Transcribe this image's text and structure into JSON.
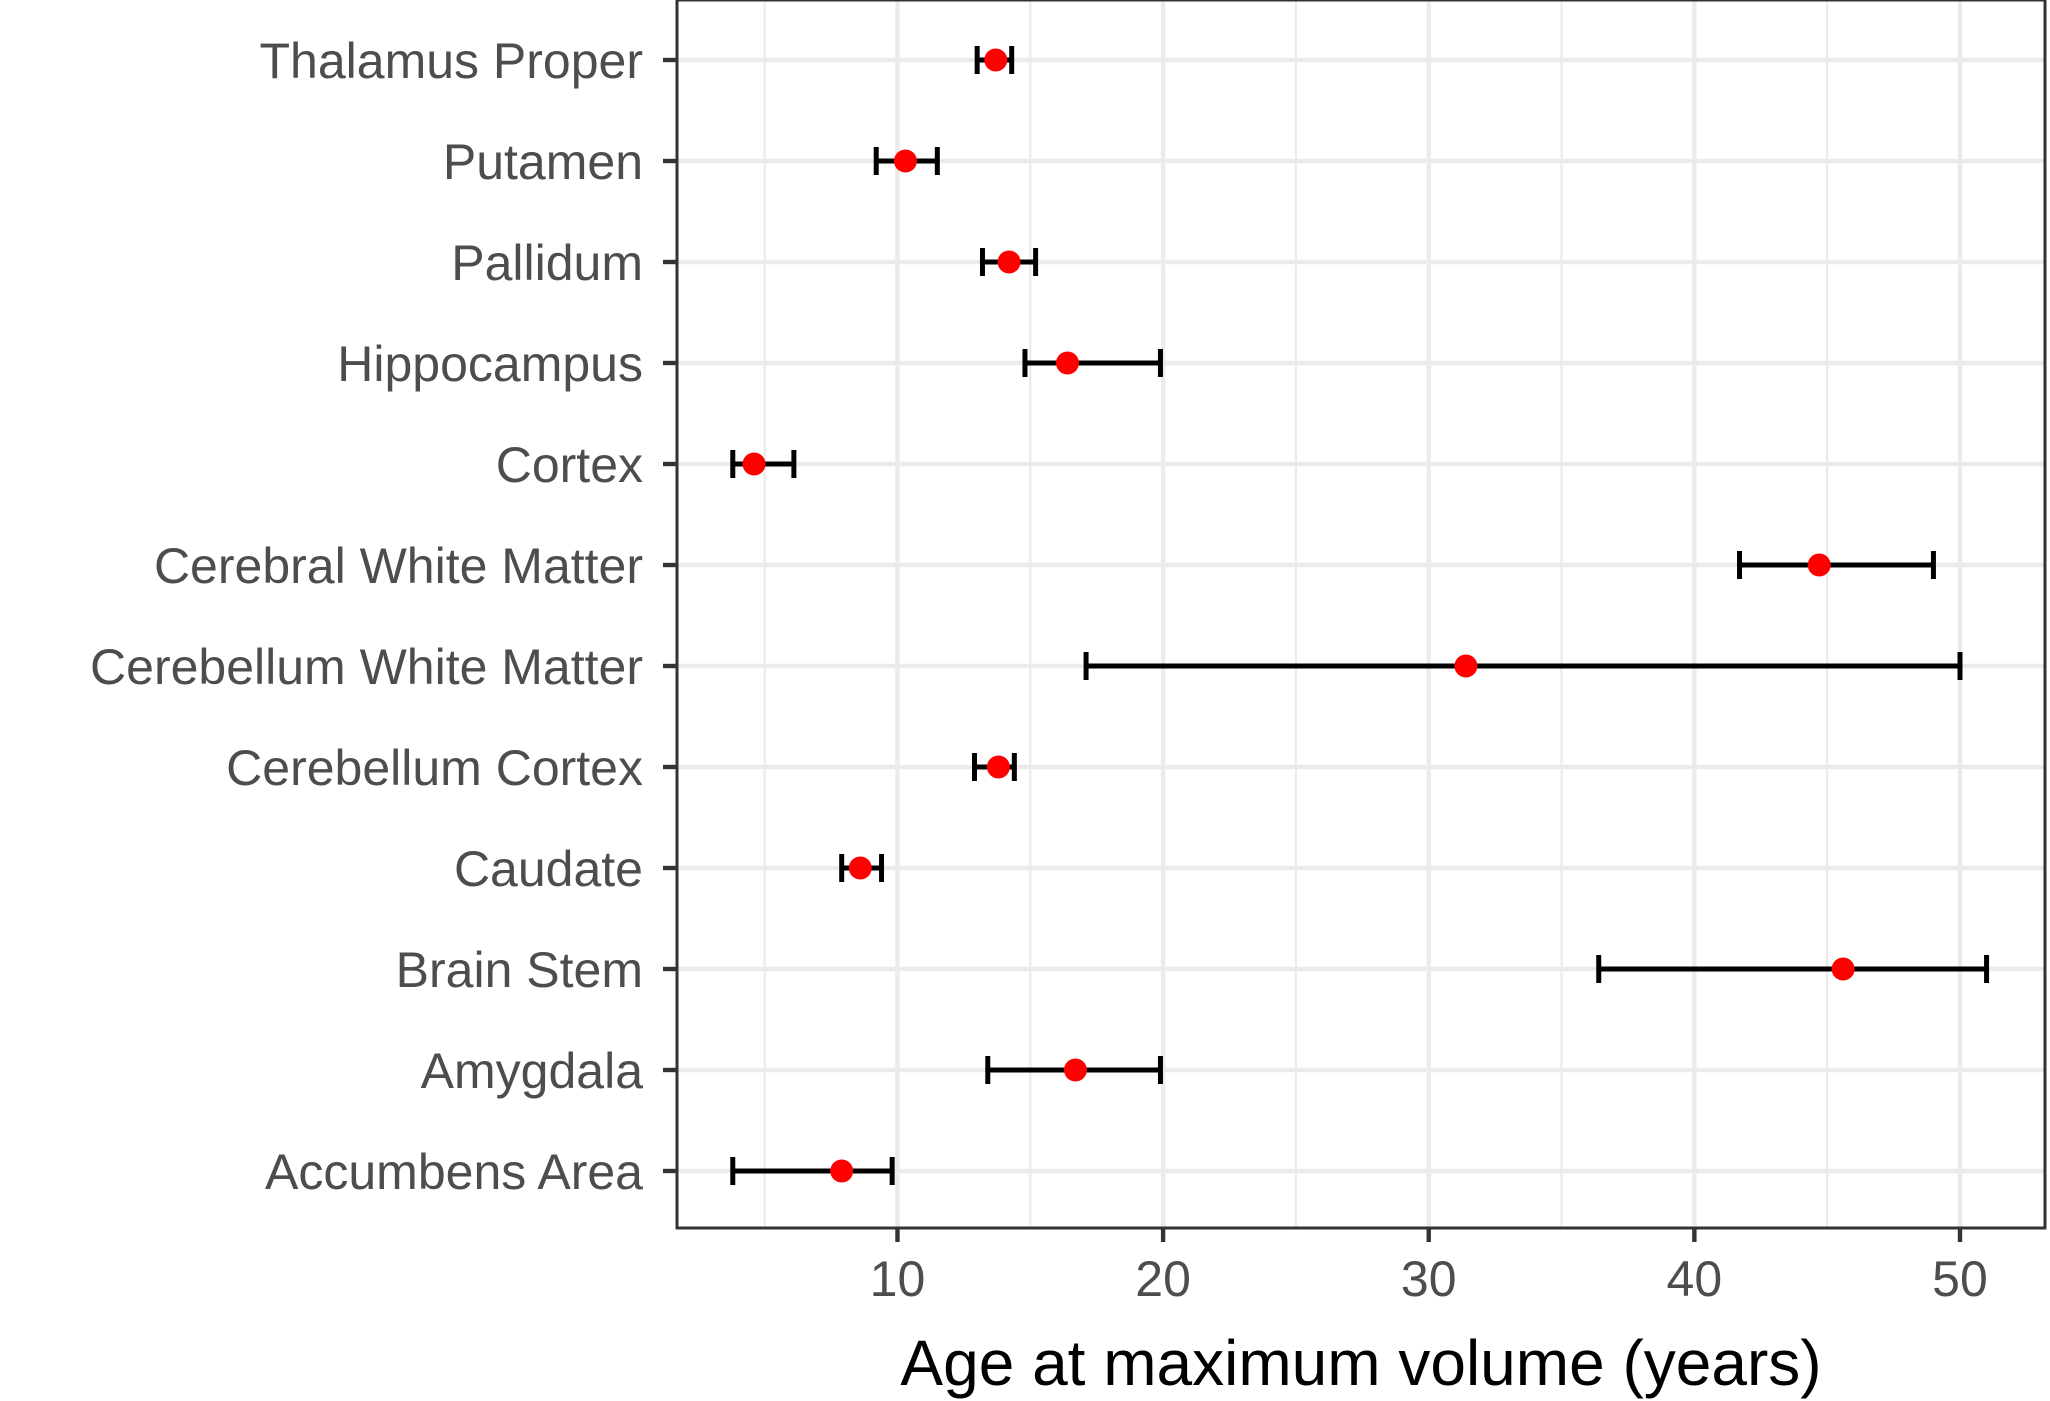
{
  "chart_data": {
    "type": "scatter",
    "subtype": "dot-with-horizontal-error-bars",
    "title": "",
    "xlabel": "Age at maximum volume (years)",
    "ylabel": "",
    "xlim": [
      1.7,
      53.2
    ],
    "xticks": [
      10,
      20,
      30,
      40,
      50
    ],
    "grid": true,
    "legend": "none",
    "colors": {
      "point": "#ff0000",
      "errorbar": "#000000",
      "grid": "#ebebeb",
      "panel_border": "#333333"
    },
    "categories": [
      "Thalamus Proper",
      "Putamen",
      "Pallidum",
      "Hippocampus",
      "Cortex",
      "Cerebral White Matter",
      "Cerebellum White Matter",
      "Cerebellum Cortex",
      "Caudate",
      "Brain Stem",
      "Amygdala",
      "Accumbens Area"
    ],
    "values": [
      13.7,
      10.3,
      14.2,
      16.4,
      4.6,
      44.7,
      31.4,
      13.8,
      8.6,
      45.6,
      16.7,
      7.9
    ],
    "lower": [
      13.0,
      9.2,
      13.2,
      14.8,
      3.8,
      41.7,
      17.1,
      12.9,
      7.9,
      36.4,
      13.4,
      3.8
    ],
    "upper": [
      14.3,
      11.5,
      15.2,
      19.9,
      6.1,
      49.0,
      50.0,
      14.4,
      9.4,
      51.0,
      19.9,
      9.8
    ]
  }
}
